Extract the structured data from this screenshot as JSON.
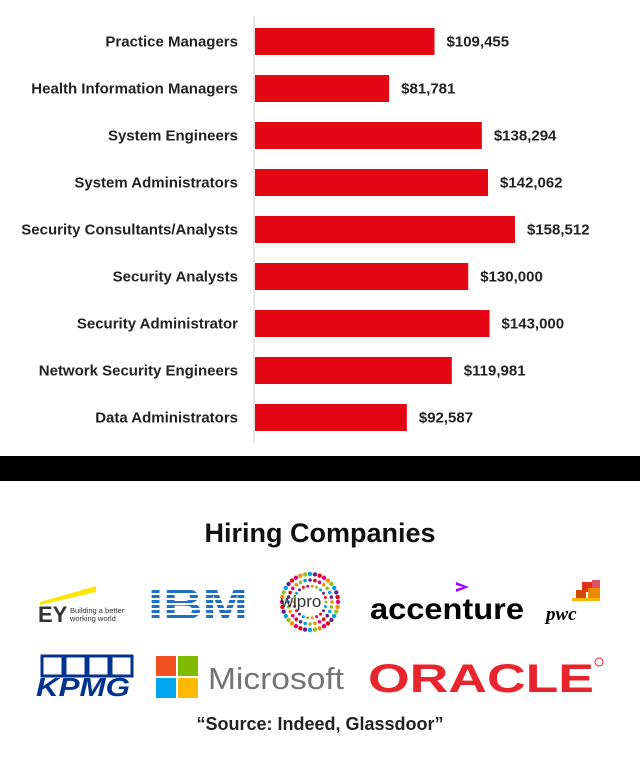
{
  "chart_data": {
    "type": "bar",
    "orientation": "horizontal",
    "categories": [
      "Practice Managers",
      "Health Information Managers",
      "System Engineers",
      "System Administrators",
      "Security Consultants/Analysts",
      "Security Analysts",
      "Security Administrator",
      "Network Security Engineers",
      "Data Administrators"
    ],
    "values": [
      109455,
      81781,
      138294,
      142062,
      158512,
      130000,
      143000,
      119981,
      92587
    ],
    "value_labels": [
      "$109,455",
      "$81,781",
      "$138,294",
      "$142,062",
      "$158,512",
      "$130,000",
      "$143,000",
      "$119,981",
      "$92,587"
    ],
    "xlim": [
      0,
      158512
    ],
    "bar_color": "#e30613",
    "grid": false
  },
  "companies": {
    "title": "Hiring Companies",
    "logos": [
      {
        "name": "EY",
        "tagline_1": "Building a better",
        "tagline_2": "working world"
      },
      {
        "name": "IBM"
      },
      {
        "name": "wipro"
      },
      {
        "name": "accenture"
      },
      {
        "name": "pwc"
      },
      {
        "name": "KPMG"
      },
      {
        "name": "Microsoft"
      },
      {
        "name": "ORACLE"
      }
    ],
    "colors": {
      "ey_yellow": "#ffe600",
      "ibm_blue": "#1f70c1",
      "accenture_purple": "#a100ff",
      "pwc_orange": "#e0301e",
      "kpmg_blue": "#00338d",
      "oracle_red": "#e8252c",
      "ms_red": "#f25022",
      "ms_green": "#7fba00",
      "ms_blue": "#00a4ef",
      "ms_yellow": "#ffb900"
    }
  },
  "source": "“Source: Indeed, Glassdoor”"
}
